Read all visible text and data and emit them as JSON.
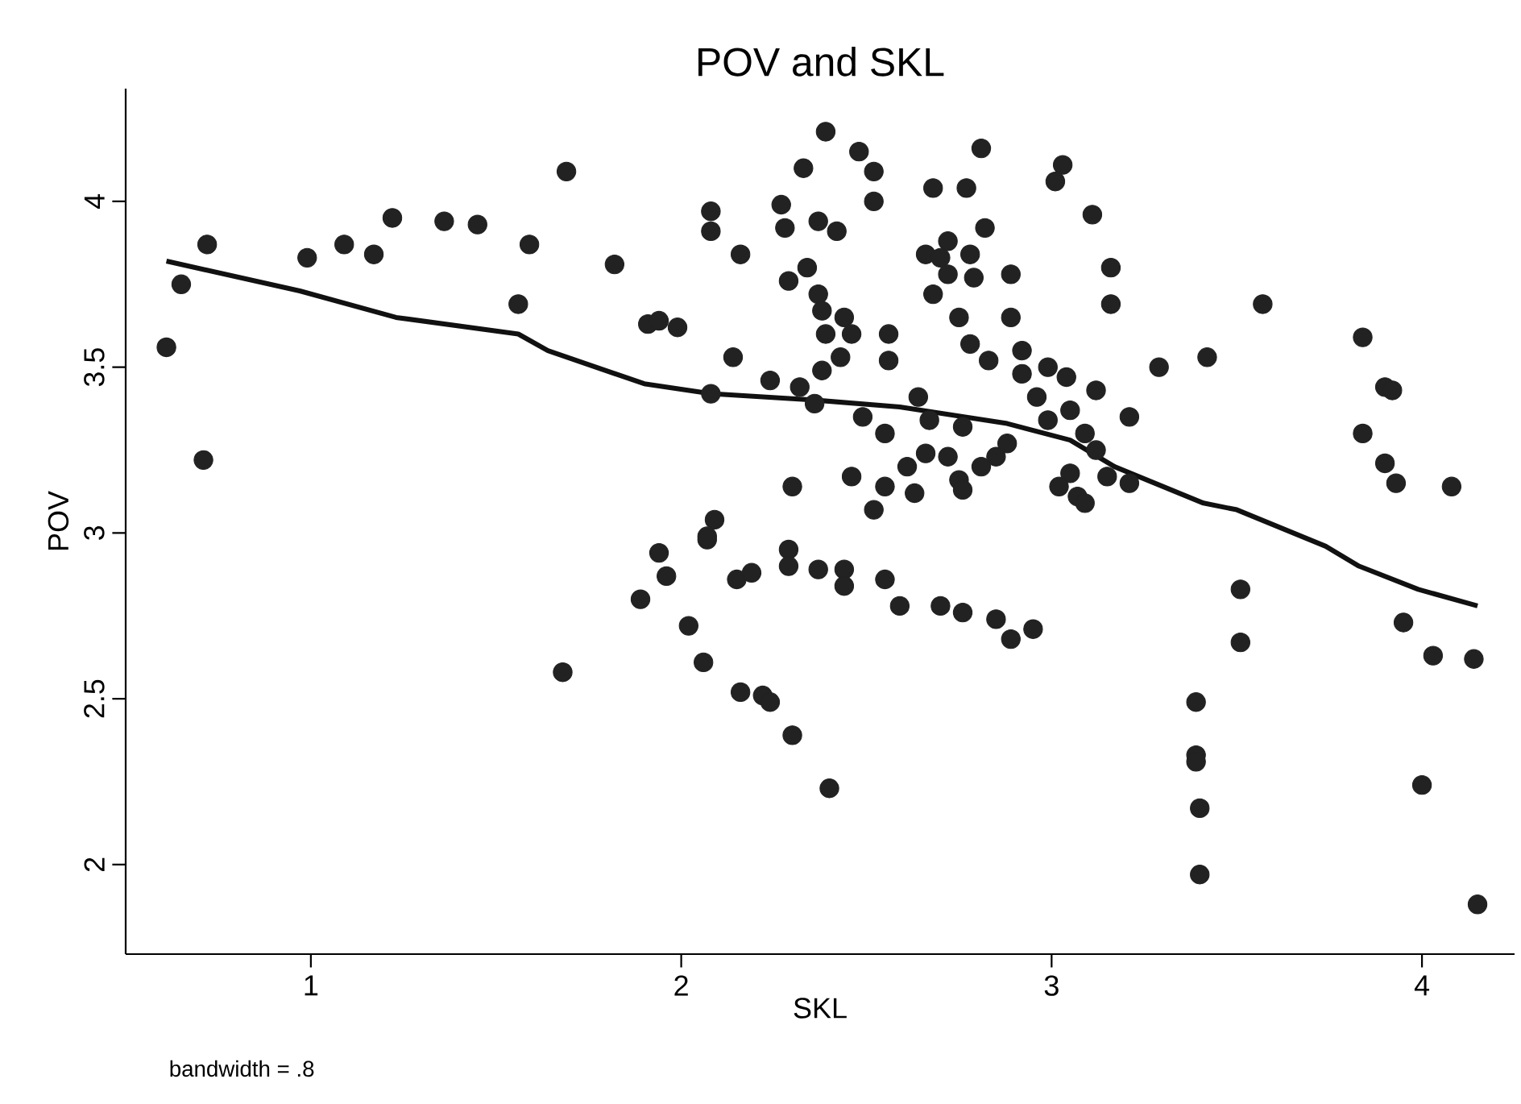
{
  "chart_data": {
    "type": "scatter",
    "title": "POV and SKL",
    "xlabel": "SKL",
    "ylabel": "POV",
    "annotations": [
      "bandwidth = .8"
    ],
    "xlim": [
      0.5,
      4.25
    ],
    "ylim": [
      1.73,
      4.34
    ],
    "xticks": [
      1,
      2,
      3,
      4
    ],
    "yticks": [
      2,
      2.5,
      3,
      3.5,
      4
    ],
    "grid": false,
    "series": [
      {
        "color": "#222222",
        "marker": "circle",
        "x": [
          0.61,
          0.65,
          0.72,
          0.71,
          0.99,
          1.09,
          1.17,
          1.22,
          1.36,
          1.45,
          1.59,
          1.56,
          1.69,
          1.82,
          1.68,
          1.89,
          1.94,
          1.96,
          2.07,
          2.02,
          2.06,
          2.16,
          2.22,
          2.24,
          2.3,
          2.4,
          2.15,
          2.19,
          2.29,
          2.29,
          2.37,
          2.44,
          2.44,
          2.55,
          2.59,
          2.7,
          2.76,
          2.85,
          2.89,
          2.95,
          2.09,
          2.07,
          2.39,
          2.48,
          2.52,
          2.33,
          2.52,
          2.08,
          2.08,
          2.27,
          2.28,
          2.37,
          2.42,
          2.16,
          2.34,
          2.29,
          2.37,
          2.38,
          2.44,
          2.39,
          2.46,
          2.43,
          2.38,
          2.56,
          2.56,
          1.91,
          1.99,
          1.94,
          2.14,
          2.24,
          2.08,
          2.32,
          2.36,
          2.49,
          2.55,
          2.64,
          2.67,
          2.76,
          2.66,
          2.72,
          2.61,
          2.55,
          2.63,
          2.52,
          2.46,
          2.3,
          2.88,
          2.85,
          2.81,
          2.75,
          2.76,
          2.68,
          2.77,
          2.81,
          3.03,
          3.01,
          3.11,
          2.82,
          2.72,
          2.66,
          2.7,
          2.78,
          2.72,
          2.68,
          2.79,
          2.89,
          2.75,
          2.89,
          2.78,
          2.83,
          2.92,
          2.99,
          2.92,
          3.04,
          3.12,
          2.96,
          2.99,
          3.05,
          3.09,
          3.12,
          3.15,
          3.05,
          3.07,
          3.09,
          3.02,
          3.16,
          3.16,
          3.57,
          3.84,
          3.9,
          3.92,
          3.42,
          3.29,
          3.21,
          3.21,
          3.84,
          3.9,
          3.93,
          4.08,
          3.51,
          3.51,
          3.95,
          4.03,
          4.14,
          3.39,
          3.39,
          3.39,
          3.4,
          3.4,
          4.0,
          4.15
        ],
        "values": [
          3.56,
          3.75,
          3.87,
          3.22,
          3.83,
          3.87,
          3.84,
          3.95,
          3.94,
          3.93,
          3.87,
          3.69,
          4.09,
          3.81,
          2.58,
          2.8,
          2.94,
          2.87,
          2.98,
          2.72,
          2.61,
          2.52,
          2.51,
          2.49,
          2.39,
          2.23,
          2.86,
          2.88,
          2.95,
          2.9,
          2.89,
          2.89,
          2.84,
          2.86,
          2.78,
          2.78,
          2.76,
          2.74,
          2.68,
          2.71,
          3.04,
          2.99,
          4.21,
          4.15,
          4.09,
          4.1,
          4.0,
          3.97,
          3.91,
          3.99,
          3.92,
          3.94,
          3.91,
          3.84,
          3.8,
          3.76,
          3.72,
          3.67,
          3.65,
          3.6,
          3.6,
          3.53,
          3.49,
          3.6,
          3.52,
          3.63,
          3.62,
          3.64,
          3.53,
          3.46,
          3.42,
          3.44,
          3.39,
          3.35,
          3.3,
          3.41,
          3.34,
          3.32,
          3.24,
          3.23,
          3.2,
          3.14,
          3.12,
          3.07,
          3.17,
          3.14,
          3.27,
          3.23,
          3.2,
          3.16,
          3.13,
          4.04,
          4.04,
          4.16,
          4.11,
          4.06,
          3.96,
          3.92,
          3.88,
          3.84,
          3.83,
          3.84,
          3.78,
          3.72,
          3.77,
          3.78,
          3.65,
          3.65,
          3.57,
          3.52,
          3.55,
          3.5,
          3.48,
          3.47,
          3.43,
          3.41,
          3.34,
          3.37,
          3.3,
          3.25,
          3.17,
          3.18,
          3.11,
          3.09,
          3.14,
          3.8,
          3.69,
          3.69,
          3.59,
          3.44,
          3.43,
          3.53,
          3.5,
          3.35,
          3.15,
          3.3,
          3.21,
          3.15,
          3.14,
          2.83,
          2.67,
          2.73,
          2.63,
          2.62,
          2.49,
          2.33,
          2.31,
          2.17,
          1.97,
          2.24,
          1.88
        ]
      },
      {
        "type": "line",
        "color": "#111111",
        "marker": "none",
        "line_style": "solid",
        "x": [
          0.61,
          0.97,
          1.23,
          1.56,
          1.64,
          1.9,
          2.08,
          2.37,
          2.59,
          2.88,
          3.05,
          3.17,
          3.41,
          3.5,
          3.74,
          3.83,
          3.99,
          4.15
        ],
        "values": [
          3.82,
          3.73,
          3.65,
          3.6,
          3.55,
          3.45,
          3.42,
          3.4,
          3.38,
          3.33,
          3.28,
          3.2,
          3.09,
          3.07,
          2.96,
          2.9,
          2.83,
          2.78
        ]
      }
    ]
  }
}
